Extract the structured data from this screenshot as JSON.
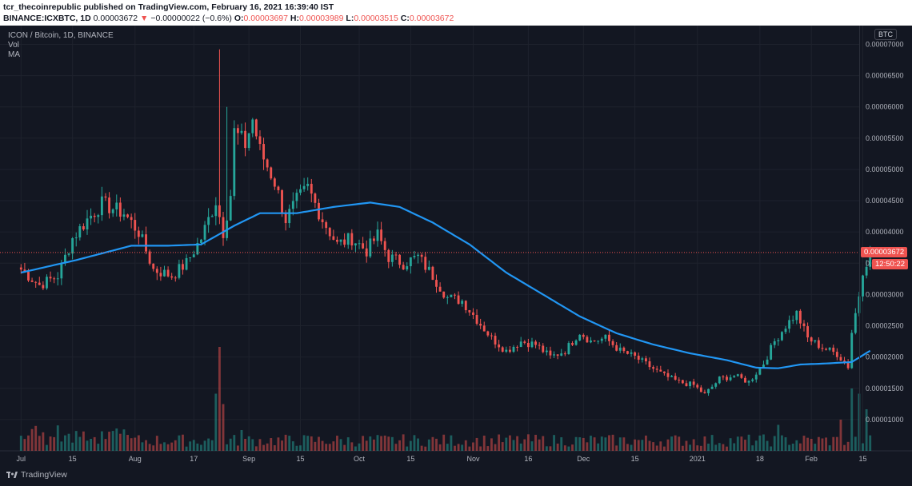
{
  "header": {
    "publisher_line": "tcr_thecoinrepublic published on TradingView.com, February 16, 2021 16:39:40 IST",
    "symbol": "BINANCE:ICXBTC, 1D",
    "last": "0.00003672",
    "change": "−0.00000022 (−0.6%)",
    "open_label": "O:",
    "open": "0.00003697",
    "high_label": "H:",
    "high": "0.00003989",
    "low_label": "L:",
    "low": "0.00003515",
    "close_label": "C:",
    "close": "0.00003672"
  },
  "legend": {
    "title": "ICON / Bitcoin, 1D, BINANCE",
    "vol": "Vol",
    "ma": "MA"
  },
  "price_axis": {
    "currency_badge": "BTC",
    "current_price": "0.00003672",
    "countdown": "12:50:22"
  },
  "branding": {
    "name": "TradingView"
  },
  "colors": {
    "background": "#131722",
    "up": "#26a69a",
    "down": "#ef5350",
    "ma": "#2196f3",
    "grid": "#1e222d"
  },
  "chart_data": {
    "type": "candlestick",
    "title": "ICON / Bitcoin, 1D, BINANCE",
    "ylim": [
      5e-06,
      7.3e-05
    ],
    "y_ticks": [
      1e-05,
      1.5e-05,
      2e-05,
      2.5e-05,
      3e-05,
      3.5e-05,
      4e-05,
      4.5e-05,
      5e-05,
      5.5e-05,
      6e-05,
      6.5e-05,
      7e-05
    ],
    "y_tick_labels": [
      "0.00001000",
      "0.00001500",
      "0.00002000",
      "0.00002500",
      "0.00003000",
      "0.00003500",
      "0.00004000",
      "0.00004500",
      "0.00005000",
      "0.00005500",
      "0.00006000",
      "0.00006500",
      "0.00007000"
    ],
    "x_tick_labels": [
      "Jul",
      "15",
      "Aug",
      "17",
      "Sep",
      "15",
      "Oct",
      "15",
      "Nov",
      "16",
      "Dec",
      "15",
      "2021",
      "18",
      "Feb",
      "15"
    ],
    "x_tick_days": [
      0,
      14,
      31,
      47,
      62,
      76,
      92,
      106,
      123,
      138,
      153,
      167,
      184,
      201,
      215,
      229
    ],
    "days_count": 232,
    "key_prices": [
      [
        0,
        3.4e-05
      ],
      [
        5,
        3.15e-05
      ],
      [
        10,
        3.3e-05
      ],
      [
        14,
        3.9e-05
      ],
      [
        18,
        4.2e-05
      ],
      [
        22,
        4.45e-05
      ],
      [
        28,
        4.3e-05
      ],
      [
        32,
        4e-05
      ],
      [
        36,
        3.4e-05
      ],
      [
        41,
        3.3e-05
      ],
      [
        45,
        3.5e-05
      ],
      [
        49,
        3.9e-05
      ],
      [
        53,
        4.5e-05
      ],
      [
        55,
        4e-05
      ],
      [
        57,
        4.6e-05
      ],
      [
        58,
        5.6e-05
      ],
      [
        61,
        5.4e-05
      ],
      [
        63,
        5.8e-05
      ],
      [
        65,
        5.3e-05
      ],
      [
        69,
        4.8e-05
      ],
      [
        72,
        4.2e-05
      ],
      [
        75,
        4.5e-05
      ],
      [
        78,
        4.7e-05
      ],
      [
        82,
        4.2e-05
      ],
      [
        86,
        3.8e-05
      ],
      [
        90,
        3.9e-05
      ],
      [
        94,
        3.7e-05
      ],
      [
        97,
        3.95e-05
      ],
      [
        100,
        3.6e-05
      ],
      [
        104,
        3.5e-05
      ],
      [
        108,
        3.6e-05
      ],
      [
        112,
        3.3e-05
      ],
      [
        116,
        2.95e-05
      ],
      [
        120,
        2.9e-05
      ],
      [
        124,
        2.6e-05
      ],
      [
        128,
        2.3e-05
      ],
      [
        132,
        2.1e-05
      ],
      [
        136,
        2.25e-05
      ],
      [
        140,
        2.2e-05
      ],
      [
        144,
        2e-05
      ],
      [
        148,
        2.1e-05
      ],
      [
        152,
        2.4e-05
      ],
      [
        155,
        2.25e-05
      ],
      [
        159,
        2.3e-05
      ],
      [
        163,
        2.1e-05
      ],
      [
        167,
        2e-05
      ],
      [
        171,
        1.85e-05
      ],
      [
        175,
        1.7e-05
      ],
      [
        179,
        1.6e-05
      ],
      [
        183,
        1.55e-05
      ],
      [
        186,
        1.4e-05
      ],
      [
        190,
        1.65e-05
      ],
      [
        194,
        1.7e-05
      ],
      [
        198,
        1.6e-05
      ],
      [
        202,
        1.9e-05
      ],
      [
        205,
        2.25e-05
      ],
      [
        208,
        2.5e-05
      ],
      [
        211,
        2.7e-05
      ],
      [
        214,
        2.3e-05
      ],
      [
        218,
        2.15e-05
      ],
      [
        222,
        2.05e-05
      ],
      [
        225,
        1.85e-05
      ],
      [
        226,
        2.4e-05
      ],
      [
        228,
        3e-05
      ],
      [
        229,
        3.4e-05
      ],
      [
        231,
        3.67e-05
      ]
    ],
    "ma_points": [
      [
        0,
        3.35e-05
      ],
      [
        15,
        3.55e-05
      ],
      [
        30,
        3.78e-05
      ],
      [
        40,
        3.78e-05
      ],
      [
        49,
        3.8e-05
      ],
      [
        58,
        4.1e-05
      ],
      [
        65,
        4.3e-05
      ],
      [
        75,
        4.3e-05
      ],
      [
        85,
        4.4e-05
      ],
      [
        95,
        4.47e-05
      ],
      [
        103,
        4.4e-05
      ],
      [
        112,
        4.15e-05
      ],
      [
        122,
        3.8e-05
      ],
      [
        132,
        3.35e-05
      ],
      [
        142,
        3e-05
      ],
      [
        152,
        2.65e-05
      ],
      [
        162,
        2.38e-05
      ],
      [
        172,
        2.2e-05
      ],
      [
        182,
        2.06e-05
      ],
      [
        192,
        1.95e-05
      ],
      [
        200,
        1.83e-05
      ],
      [
        206,
        1.82e-05
      ],
      [
        212,
        1.88e-05
      ],
      [
        220,
        1.9e-05
      ],
      [
        226,
        1.92e-05
      ],
      [
        231,
        2.1e-05
      ]
    ],
    "volume_spikes": [
      [
        53,
        0.55
      ],
      [
        54,
        1.0
      ],
      [
        55,
        0.45
      ],
      [
        60,
        0.2
      ],
      [
        206,
        0.25
      ],
      [
        223,
        0.3
      ],
      [
        226,
        0.6
      ],
      [
        228,
        0.55
      ],
      [
        230,
        0.4
      ]
    ]
  }
}
